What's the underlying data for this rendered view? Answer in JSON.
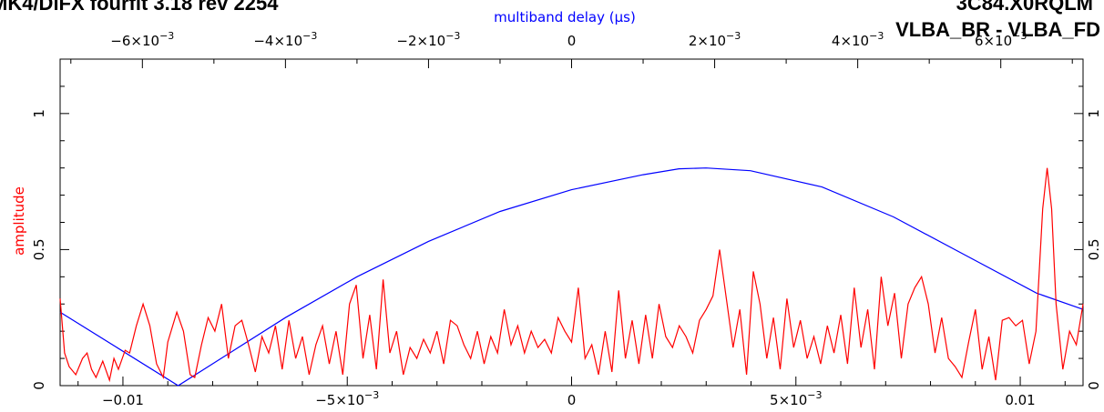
{
  "header": {
    "left_title": "MK4/DiFX fourfit 3.18 rev 2254",
    "right_title_line1": "3C84.X0RQLM",
    "right_title_line2": "VLBA_BR - VLBA_FD"
  },
  "colors": {
    "amplitude": "#ff0000",
    "delay": "#0000ff",
    "axes": "#000000",
    "background": "#ffffff"
  },
  "chart_data": {
    "type": "line",
    "top_axis": {
      "label": "multiband delay (μs)",
      "range": [
        -0.00715,
        0.00715
      ],
      "ticks": [
        {
          "value": -0.006,
          "label": "−6×10",
          "exp": "−3"
        },
        {
          "value": -0.004,
          "label": "−4×10",
          "exp": "−3"
        },
        {
          "value": -0.002,
          "label": "−2×10",
          "exp": "−3"
        },
        {
          "value": 0,
          "label": "0",
          "exp": ""
        },
        {
          "value": 0.002,
          "label": "2×10",
          "exp": "−3"
        },
        {
          "value": 0.004,
          "label": "4×10",
          "exp": "−3"
        },
        {
          "value": 0.006,
          "label": "6×10",
          "exp": "−3"
        }
      ]
    },
    "bottom_axis": {
      "label": "",
      "range": [
        -0.0114,
        0.0114
      ],
      "ticks": [
        {
          "value": -0.01,
          "label": "−0.01",
          "exp": ""
        },
        {
          "value": -0.005,
          "label": "−5×10",
          "exp": "−3"
        },
        {
          "value": 0,
          "label": "0",
          "exp": ""
        },
        {
          "value": 0.005,
          "label": "5×10",
          "exp": "−3"
        },
        {
          "value": 0.01,
          "label": "0.01",
          "exp": ""
        }
      ]
    },
    "y_axis": {
      "label": "amplitude",
      "range": [
        0,
        1.2
      ],
      "ticks": [
        {
          "value": 0,
          "label": "0"
        },
        {
          "value": 0.5,
          "label": "0.5"
        },
        {
          "value": 1,
          "label": "1"
        }
      ]
    },
    "series": [
      {
        "axis": "top",
        "points": [
          [
            -0.00715,
            0.27
          ],
          [
            -0.0055,
            0.0
          ],
          [
            -0.004,
            0.25
          ],
          [
            -0.003,
            0.4
          ],
          [
            -0.002,
            0.53
          ],
          [
            -0.001,
            0.64
          ],
          [
            0.0,
            0.72
          ],
          [
            0.001,
            0.775
          ],
          [
            0.0015,
            0.797
          ],
          [
            0.00188,
            0.8
          ],
          [
            0.0025,
            0.79
          ],
          [
            0.0035,
            0.73
          ],
          [
            0.0045,
            0.62
          ],
          [
            0.0055,
            0.48
          ],
          [
            0.0065,
            0.34
          ],
          [
            0.00715,
            0.28
          ]
        ]
      },
      {
        "axis": "bottom",
        "points": [
          [
            -0.0114,
            0.32
          ],
          [
            -0.0113,
            0.12
          ],
          [
            -0.0112,
            0.07
          ],
          [
            -0.01105,
            0.04
          ],
          [
            -0.0109,
            0.1
          ],
          [
            -0.0108,
            0.12
          ],
          [
            -0.0107,
            0.06
          ],
          [
            -0.0106,
            0.03
          ],
          [
            -0.01045,
            0.09
          ],
          [
            -0.0103,
            0.02
          ],
          [
            -0.0102,
            0.1
          ],
          [
            -0.0101,
            0.06
          ],
          [
            -0.00995,
            0.13
          ],
          [
            -0.00985,
            0.12
          ],
          [
            -0.0097,
            0.22
          ],
          [
            -0.00955,
            0.3
          ],
          [
            -0.0094,
            0.22
          ],
          [
            -0.00925,
            0.08
          ],
          [
            -0.0091,
            0.03
          ],
          [
            -0.009,
            0.16
          ],
          [
            -0.0088,
            0.27
          ],
          [
            -0.00865,
            0.2
          ],
          [
            -0.0085,
            0.04
          ],
          [
            -0.0084,
            0.03
          ],
          [
            -0.00825,
            0.15
          ],
          [
            -0.0081,
            0.25
          ],
          [
            -0.00795,
            0.2
          ],
          [
            -0.0078,
            0.3
          ],
          [
            -0.00765,
            0.1
          ],
          [
            -0.0075,
            0.22
          ],
          [
            -0.00735,
            0.24
          ],
          [
            -0.0072,
            0.15
          ],
          [
            -0.00705,
            0.05
          ],
          [
            -0.0069,
            0.18
          ],
          [
            -0.00675,
            0.12
          ],
          [
            -0.0066,
            0.22
          ],
          [
            -0.00645,
            0.06
          ],
          [
            -0.0063,
            0.24
          ],
          [
            -0.00615,
            0.1
          ],
          [
            -0.006,
            0.18
          ],
          [
            -0.00585,
            0.04
          ],
          [
            -0.0057,
            0.15
          ],
          [
            -0.00555,
            0.22
          ],
          [
            -0.0054,
            0.08
          ],
          [
            -0.00525,
            0.2
          ],
          [
            -0.0051,
            0.04
          ],
          [
            -0.00495,
            0.3
          ],
          [
            -0.0048,
            0.37
          ],
          [
            -0.00465,
            0.1
          ],
          [
            -0.0045,
            0.26
          ],
          [
            -0.00435,
            0.06
          ],
          [
            -0.0042,
            0.39
          ],
          [
            -0.00405,
            0.12
          ],
          [
            -0.0039,
            0.2
          ],
          [
            -0.00375,
            0.04
          ],
          [
            -0.0036,
            0.14
          ],
          [
            -0.00345,
            0.1
          ],
          [
            -0.0033,
            0.17
          ],
          [
            -0.00315,
            0.12
          ],
          [
            -0.003,
            0.2
          ],
          [
            -0.00285,
            0.08
          ],
          [
            -0.0027,
            0.24
          ],
          [
            -0.00255,
            0.22
          ],
          [
            -0.0024,
            0.15
          ],
          [
            -0.00225,
            0.1
          ],
          [
            -0.0021,
            0.2
          ],
          [
            -0.00195,
            0.08
          ],
          [
            -0.0018,
            0.18
          ],
          [
            -0.00165,
            0.12
          ],
          [
            -0.0015,
            0.28
          ],
          [
            -0.00135,
            0.15
          ],
          [
            -0.0012,
            0.22
          ],
          [
            -0.00105,
            0.12
          ],
          [
            -0.0009,
            0.2
          ],
          [
            -0.00075,
            0.14
          ],
          [
            -0.0006,
            0.17
          ],
          [
            -0.00045,
            0.12
          ],
          [
            -0.0003,
            0.25
          ],
          [
            -0.00015,
            0.2
          ],
          [
            0.0,
            0.16
          ],
          [
            0.00015,
            0.36
          ],
          [
            0.0003,
            0.1
          ],
          [
            0.00045,
            0.15
          ],
          [
            0.0006,
            0.04
          ],
          [
            0.00075,
            0.2
          ],
          [
            0.0009,
            0.05
          ],
          [
            0.00105,
            0.35
          ],
          [
            0.0012,
            0.1
          ],
          [
            0.00135,
            0.24
          ],
          [
            0.0015,
            0.08
          ],
          [
            0.00165,
            0.26
          ],
          [
            0.0018,
            0.1
          ],
          [
            0.00195,
            0.3
          ],
          [
            0.0021,
            0.18
          ],
          [
            0.00225,
            0.14
          ],
          [
            0.0024,
            0.22
          ],
          [
            0.00255,
            0.18
          ],
          [
            0.0027,
            0.12
          ],
          [
            0.00285,
            0.24
          ],
          [
            0.003,
            0.28
          ],
          [
            0.00315,
            0.33
          ],
          [
            0.0033,
            0.5
          ],
          [
            0.00345,
            0.32
          ],
          [
            0.0036,
            0.14
          ],
          [
            0.00375,
            0.28
          ],
          [
            0.0039,
            0.04
          ],
          [
            0.00405,
            0.42
          ],
          [
            0.0042,
            0.3
          ],
          [
            0.00435,
            0.1
          ],
          [
            0.0045,
            0.25
          ],
          [
            0.00465,
            0.06
          ],
          [
            0.0048,
            0.32
          ],
          [
            0.00495,
            0.14
          ],
          [
            0.0051,
            0.24
          ],
          [
            0.00525,
            0.1
          ],
          [
            0.0054,
            0.18
          ],
          [
            0.00555,
            0.08
          ],
          [
            0.0057,
            0.22
          ],
          [
            0.00585,
            0.12
          ],
          [
            0.006,
            0.26
          ],
          [
            0.00615,
            0.08
          ],
          [
            0.0063,
            0.36
          ],
          [
            0.00645,
            0.14
          ],
          [
            0.0066,
            0.28
          ],
          [
            0.00675,
            0.06
          ],
          [
            0.0069,
            0.4
          ],
          [
            0.00705,
            0.22
          ],
          [
            0.0072,
            0.34
          ],
          [
            0.00735,
            0.1
          ],
          [
            0.0075,
            0.3
          ],
          [
            0.00765,
            0.36
          ],
          [
            0.0078,
            0.4
          ],
          [
            0.00795,
            0.3
          ],
          [
            0.0081,
            0.12
          ],
          [
            0.00825,
            0.25
          ],
          [
            0.0084,
            0.1
          ],
          [
            0.00855,
            0.07
          ],
          [
            0.0087,
            0.03
          ],
          [
            0.00885,
            0.16
          ],
          [
            0.009,
            0.28
          ],
          [
            0.00915,
            0.06
          ],
          [
            0.0093,
            0.18
          ],
          [
            0.00945,
            0.02
          ],
          [
            0.0096,
            0.24
          ],
          [
            0.00975,
            0.25
          ],
          [
            0.0099,
            0.22
          ],
          [
            0.01005,
            0.24
          ],
          [
            0.0102,
            0.08
          ],
          [
            0.01035,
            0.2
          ],
          [
            0.0105,
            0.65
          ],
          [
            0.0106,
            0.8
          ],
          [
            0.0107,
            0.65
          ],
          [
            0.0108,
            0.3
          ],
          [
            0.01095,
            0.06
          ],
          [
            0.0111,
            0.2
          ],
          [
            0.01125,
            0.15
          ],
          [
            0.0114,
            0.3
          ]
        ]
      }
    ]
  }
}
